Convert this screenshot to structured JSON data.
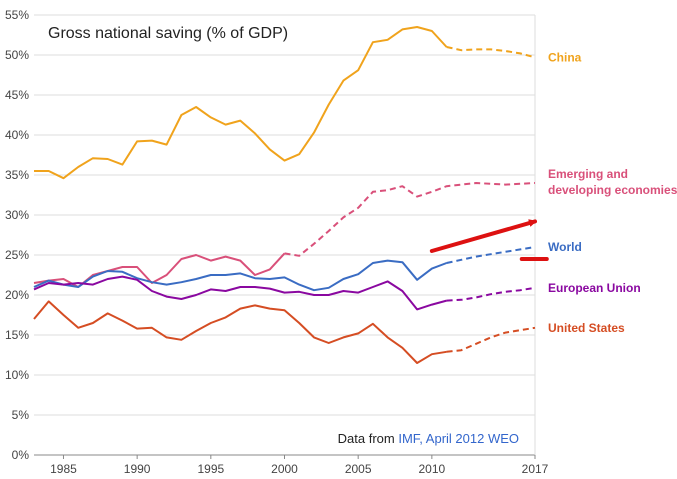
{
  "chart_data": {
    "type": "line",
    "title": "Gross national saving (% of GDP)",
    "xlabel": "",
    "ylabel": "",
    "xlim": [
      1983,
      2017
    ],
    "ylim": [
      0,
      55
    ],
    "x_ticks": [
      1985,
      1990,
      1995,
      2000,
      2005,
      2010,
      2017
    ],
    "y_ticks": [
      0,
      5,
      10,
      15,
      20,
      25,
      30,
      35,
      40,
      45,
      50,
      55
    ],
    "y_tick_suffix": "%",
    "grid": "horizontal",
    "projection_start": 2012,
    "annotation": {
      "prefix": "Data from ",
      "source": "IMF, April 2012 WEO",
      "source_color": "#3366cc"
    },
    "arrow": {
      "from": [
        2010,
        25.5
      ],
      "to": [
        2017,
        29.2
      ],
      "color": "#dd1111"
    },
    "underline": {
      "x": [
        2016.1,
        2017.8
      ],
      "y": 24.5,
      "color": "#dd1111"
    },
    "series": [
      {
        "name": "China",
        "label_lines": [
          "China"
        ],
        "color": "#f0a31c",
        "x": [
          1983,
          1984,
          1985,
          1986,
          1987,
          1988,
          1989,
          1990,
          1991,
          1992,
          1993,
          1994,
          1995,
          1996,
          1997,
          1998,
          1999,
          2000,
          2001,
          2002,
          2003,
          2004,
          2005,
          2006,
          2007,
          2008,
          2009,
          2010,
          2011,
          2012,
          2013,
          2014,
          2015,
          2016,
          2017
        ],
        "values": [
          35.5,
          35.5,
          34.6,
          36.0,
          37.1,
          37.0,
          36.3,
          39.2,
          39.3,
          38.8,
          42.5,
          43.5,
          42.2,
          41.3,
          41.8,
          40.2,
          38.2,
          36.8,
          37.6,
          40.3,
          43.8,
          46.8,
          48.1,
          51.6,
          51.9,
          53.2,
          53.5,
          53.0,
          51.0,
          50.6,
          50.7,
          50.7,
          50.5,
          50.2,
          49.7
        ]
      },
      {
        "name": "Emerging and developing economies",
        "label_lines": [
          "Emerging and",
          "developing economies"
        ],
        "color": "#d9507a",
        "x": [
          1983,
          1984,
          1985,
          1986,
          1987,
          1988,
          1989,
          1990,
          1991,
          1992,
          1993,
          1994,
          1995,
          1996,
          1997,
          1998,
          1999,
          2000,
          2001,
          2002,
          2003,
          2004,
          2005,
          2006,
          2007,
          2008,
          2009,
          2010,
          2011,
          2012,
          2013,
          2014,
          2015,
          2016,
          2017
        ],
        "values": [
          21.5,
          21.8,
          22.0,
          21.0,
          22.5,
          23.0,
          23.5,
          23.5,
          21.5,
          22.5,
          24.5,
          25.0,
          24.3,
          24.8,
          24.3,
          22.5,
          23.2,
          25.2,
          24.9,
          26.4,
          28.0,
          29.7,
          30.9,
          32.9,
          33.1,
          33.6,
          32.3,
          32.9,
          33.6,
          33.8,
          34.0,
          33.9,
          33.8,
          33.9,
          34.0
        ]
      },
      {
        "name": "World",
        "label_lines": [
          "World"
        ],
        "color": "#3a6cc3",
        "x": [
          1983,
          1984,
          1985,
          1986,
          1987,
          1988,
          1989,
          1990,
          1991,
          1992,
          1993,
          1994,
          1995,
          1996,
          1997,
          1998,
          1999,
          2000,
          2001,
          2002,
          2003,
          2004,
          2005,
          2006,
          2007,
          2008,
          2009,
          2010,
          2011,
          2012,
          2013,
          2014,
          2015,
          2016,
          2017
        ],
        "values": [
          21.0,
          21.8,
          21.3,
          21.0,
          22.3,
          23.0,
          22.9,
          22.1,
          21.6,
          21.3,
          21.6,
          22.0,
          22.5,
          22.5,
          22.7,
          22.1,
          22.0,
          22.2,
          21.3,
          20.6,
          20.9,
          22.0,
          22.6,
          24.0,
          24.3,
          24.1,
          21.9,
          23.3,
          24.0,
          24.4,
          24.8,
          25.1,
          25.4,
          25.7,
          26.0
        ]
      },
      {
        "name": "European Union",
        "label_lines": [
          "European Union"
        ],
        "color": "#8a08a0",
        "x": [
          1983,
          1984,
          1985,
          1986,
          1987,
          1988,
          1989,
          1990,
          1991,
          1992,
          1993,
          1994,
          1995,
          1996,
          1997,
          1998,
          1999,
          2000,
          2001,
          2002,
          2003,
          2004,
          2005,
          2006,
          2007,
          2008,
          2009,
          2010,
          2011,
          2012,
          2013,
          2014,
          2015,
          2016,
          2017
        ],
        "values": [
          20.7,
          21.5,
          21.3,
          21.5,
          21.3,
          22.0,
          22.3,
          21.9,
          20.5,
          19.8,
          19.5,
          20.0,
          20.7,
          20.5,
          21.0,
          21.0,
          20.8,
          20.3,
          20.4,
          20.0,
          20.0,
          20.5,
          20.3,
          21.0,
          21.7,
          20.5,
          18.2,
          18.8,
          19.3,
          19.4,
          19.7,
          20.1,
          20.4,
          20.6,
          20.9
        ]
      },
      {
        "name": "United States",
        "label_lines": [
          "United States"
        ],
        "color": "#d54d23",
        "x": [
          1983,
          1984,
          1985,
          1986,
          1987,
          1988,
          1989,
          1990,
          1991,
          1992,
          1993,
          1994,
          1995,
          1996,
          1997,
          1998,
          1999,
          2000,
          2001,
          2002,
          2003,
          2004,
          2005,
          2006,
          2007,
          2008,
          2009,
          2010,
          2011,
          2012,
          2013,
          2014,
          2015,
          2016,
          2017
        ],
        "values": [
          17.0,
          19.2,
          17.5,
          15.9,
          16.5,
          17.7,
          16.8,
          15.8,
          15.9,
          14.7,
          14.4,
          15.5,
          16.5,
          17.2,
          18.3,
          18.7,
          18.3,
          18.1,
          16.5,
          14.7,
          14.0,
          14.7,
          15.2,
          16.4,
          14.7,
          13.4,
          11.5,
          12.6,
          12.9,
          13.1,
          13.9,
          14.7,
          15.3,
          15.6,
          15.9
        ]
      }
    ]
  }
}
